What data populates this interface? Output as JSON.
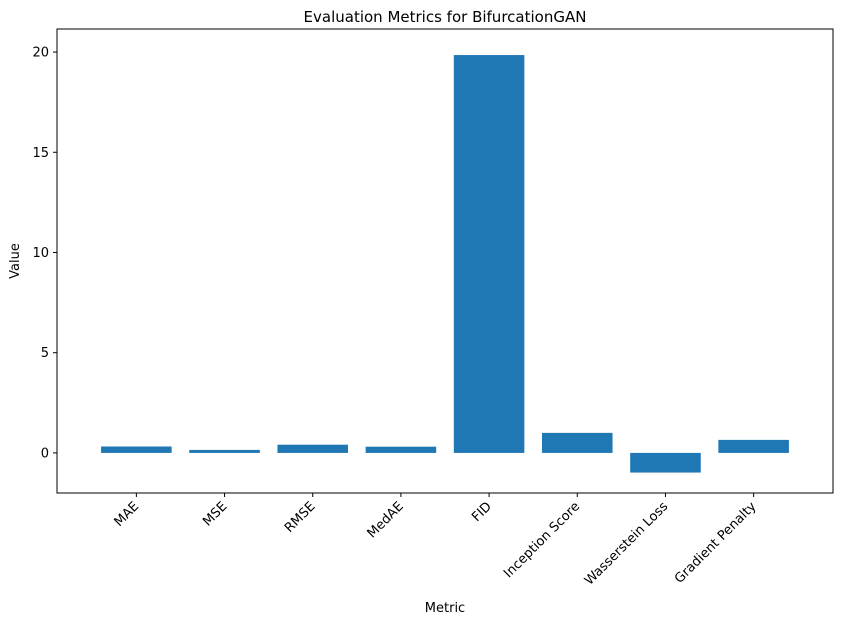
{
  "chart_data": {
    "type": "bar",
    "title": "Evaluation Metrics for BifurcationGAN",
    "xlabel": "Metric",
    "ylabel": "Value",
    "categories": [
      "MAE",
      "MSE",
      "RMSE",
      "MedAE",
      "FID",
      "Inception Score",
      "Wasserstein Loss",
      "Gradient Penalty"
    ],
    "values": [
      0.32,
      0.15,
      0.41,
      0.31,
      19.85,
      1.0,
      -0.98,
      0.65
    ],
    "ylim": [
      -2.0,
      21.15
    ],
    "yticks": [
      0,
      5,
      10,
      15,
      20
    ],
    "ytick_labels": [
      "0",
      "5",
      "10",
      "15",
      "20"
    ],
    "bar_color": "#1f77b4",
    "grid": false,
    "legend": "none"
  }
}
